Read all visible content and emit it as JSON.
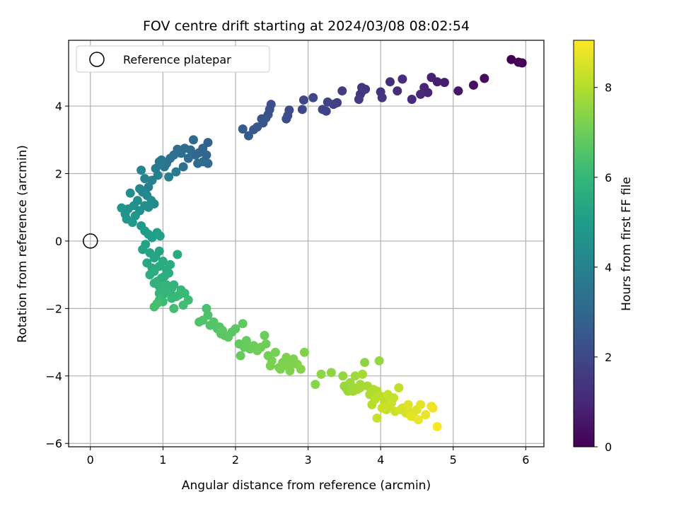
{
  "chart_data": {
    "type": "scatter",
    "title": "FOV centre drift starting at 2024/03/08 08:02:54",
    "xlabel": "Angular distance from reference (arcmin)",
    "ylabel": "Rotation from reference (arcmin)",
    "xlim": [
      -0.3,
      6.25
    ],
    "ylim": [
      -6.1,
      5.95
    ],
    "xticks": [
      0,
      1,
      2,
      3,
      4,
      5,
      6
    ],
    "yticks": [
      -6,
      -4,
      -2,
      0,
      2,
      4
    ],
    "grid": true,
    "legend": {
      "placement": "top-left",
      "label": "Reference platepar"
    },
    "reference_point": {
      "x": 0,
      "y": 0
    },
    "colorbar": {
      "label": "Hours from first FF file",
      "range": [
        0,
        9.05
      ],
      "ticks": [
        0,
        2,
        4,
        6,
        8
      ],
      "colormap": "viridis",
      "colors": [
        "#440154",
        "#482878",
        "#3e4989",
        "#31688e",
        "#26828e",
        "#1f9e89",
        "#35b779",
        "#6ece58",
        "#b5de2b",
        "#fde725"
      ]
    },
    "series": [
      {
        "x": [
          5.8,
          5.9,
          5.95,
          5.43,
          5.28,
          5.07,
          4.88,
          4.78,
          4.7,
          4.65,
          4.6,
          4.55,
          4.43,
          4.3,
          4.23,
          4.13,
          4.0,
          4.02,
          3.79,
          3.75,
          3.72,
          3.7,
          3.74,
          3.47,
          3.4,
          3.35,
          3.27,
          3.25,
          3.2,
          3.07,
          2.94,
          2.92,
          2.74,
          2.7,
          2.72,
          2.49,
          2.47,
          2.45,
          2.42,
          2.38,
          2.36,
          2.3,
          2.25,
          2.18,
          2.1
        ],
        "y": [
          5.38,
          5.3,
          5.28,
          4.82,
          4.62,
          4.45,
          4.7,
          4.72,
          4.85,
          4.4,
          4.55,
          4.35,
          4.2,
          4.8,
          4.45,
          4.72,
          4.42,
          4.25,
          4.5,
          4.45,
          4.35,
          4.2,
          4.55,
          4.45,
          4.1,
          4.05,
          4.12,
          3.85,
          3.9,
          4.25,
          4.18,
          3.9,
          3.88,
          3.62,
          3.72,
          4.05,
          3.9,
          3.75,
          3.65,
          3.5,
          3.62,
          3.38,
          3.3,
          3.12,
          3.32
        ],
        "t": [
          0.0,
          0.05,
          0.1,
          0.3,
          0.4,
          0.55,
          0.7,
          0.75,
          0.8,
          0.9,
          0.95,
          1.0,
          1.1,
          1.15,
          1.2,
          1.25,
          1.3,
          1.35,
          1.4,
          1.45,
          1.5,
          1.55,
          1.45,
          1.6,
          1.7,
          1.75,
          1.8,
          1.85,
          1.9,
          1.95,
          2.0,
          2.05,
          2.1,
          2.15,
          2.15,
          2.2,
          2.25,
          2.3,
          2.35,
          2.4,
          2.42,
          2.45,
          2.5,
          2.55,
          2.6
        ]
      },
      {
        "x": [
          1.62,
          1.55,
          1.5,
          1.45,
          1.42,
          1.38,
          1.3,
          1.25,
          1.2,
          1.15,
          1.1,
          1.05,
          1.02,
          0.98,
          0.95,
          0.9,
          1.35,
          1.28,
          1.55,
          1.48,
          1.6,
          1.62,
          1.18,
          1.08,
          0.93,
          0.85,
          0.8,
          0.75,
          0.7,
          0.68,
          0.72,
          0.78,
          0.84,
          0.88,
          0.8,
          0.75,
          0.68,
          0.65,
          0.6,
          0.55,
          0.52,
          0.48,
          0.43,
          0.5,
          0.58,
          0.62
        ],
        "y": [
          2.92,
          2.75,
          2.62,
          2.55,
          3.0,
          2.7,
          2.75,
          2.6,
          2.72,
          2.55,
          2.45,
          2.3,
          2.2,
          2.4,
          2.35,
          2.15,
          2.45,
          2.2,
          2.35,
          2.3,
          2.55,
          2.3,
          2.05,
          1.9,
          1.95,
          1.8,
          1.6,
          1.85,
          2.1,
          1.55,
          1.45,
          1.35,
          1.2,
          1.1,
          1.0,
          1.05,
          0.9,
          1.2,
          1.05,
          1.42,
          0.95,
          0.8,
          0.98,
          0.65,
          0.55,
          0.75
        ],
        "t": [
          2.8,
          2.9,
          3.0,
          3.05,
          3.1,
          3.15,
          3.2,
          3.25,
          3.3,
          3.35,
          3.4,
          3.5,
          3.55,
          3.6,
          3.65,
          3.7,
          3.2,
          3.3,
          3.1,
          3.2,
          3.0,
          3.1,
          3.75,
          3.85,
          3.9,
          3.95,
          4.0,
          4.05,
          4.1,
          4.15,
          4.2,
          4.25,
          4.3,
          4.35,
          4.4,
          4.45,
          4.5,
          4.45,
          4.55,
          4.5,
          4.6,
          4.65,
          4.7,
          4.75,
          4.8,
          4.85
        ]
      },
      {
        "x": [
          0.7,
          0.75,
          0.8,
          0.85,
          0.92,
          0.96,
          0.76,
          0.72,
          0.82,
          0.88,
          0.78,
          0.85,
          0.9,
          0.95,
          1.0,
          0.95,
          0.88,
          0.82,
          1.05,
          1.1,
          0.98,
          0.92,
          0.88,
          0.95,
          1.02,
          1.08,
          1.12,
          1.05,
          1.0,
          0.95,
          1.15,
          1.2,
          1.25,
          1.18,
          1.12,
          1.0,
          0.95,
          1.3,
          1.35,
          1.28,
          1.22,
          1.15,
          1.1,
          1.05,
          0.92,
          0.88
        ],
        "y": [
          0.45,
          0.3,
          0.2,
          0.1,
          0.25,
          0.15,
          -0.1,
          -0.25,
          -0.35,
          -0.5,
          -0.65,
          -0.8,
          -0.45,
          -0.3,
          -0.6,
          -0.75,
          -0.9,
          -1.0,
          -0.85,
          -0.7,
          -1.1,
          -1.2,
          -1.25,
          -1.35,
          -1.05,
          -0.95,
          -1.4,
          -1.5,
          -1.6,
          -1.55,
          -1.3,
          -0.4,
          -1.45,
          -1.65,
          -1.7,
          -1.8,
          -1.75,
          -1.55,
          -1.75,
          -1.9,
          -1.6,
          -2.0,
          -1.5,
          -1.3,
          -1.85,
          -1.95
        ],
        "t": [
          4.9,
          4.95,
          5.0,
          5.05,
          5.1,
          5.15,
          5.2,
          5.25,
          5.3,
          5.35,
          5.4,
          5.45,
          5.3,
          5.25,
          5.5,
          5.55,
          5.6,
          5.65,
          5.6,
          5.55,
          5.7,
          5.75,
          5.8,
          5.85,
          5.7,
          5.65,
          5.9,
          5.95,
          6.0,
          6.0,
          5.9,
          5.5,
          6.05,
          6.1,
          6.1,
          6.15,
          6.15,
          6.1,
          6.2,
          6.25,
          6.1,
          6.3,
          6.0,
          5.9,
          6.3,
          6.35
        ]
      },
      {
        "x": [
          1.6,
          1.62,
          1.55,
          1.5,
          1.65,
          1.75,
          1.8,
          1.85,
          1.78,
          1.9,
          1.95,
          2.0,
          2.05,
          2.1,
          2.15,
          2.2,
          2.25,
          2.3,
          2.35,
          2.4,
          2.45,
          2.5,
          2.55,
          2.6,
          2.65,
          2.7,
          2.72,
          2.75,
          2.8,
          2.85,
          2.9,
          2.95,
          2.07,
          2.12,
          1.82,
          1.7,
          2.42,
          2.48,
          2.62,
          2.78
        ],
        "y": [
          -2.0,
          -2.2,
          -2.35,
          -2.4,
          -2.5,
          -2.6,
          -2.75,
          -2.8,
          -2.55,
          -2.85,
          -2.7,
          -2.6,
          -3.05,
          -2.45,
          -2.95,
          -3.2,
          -3.1,
          -3.25,
          -3.15,
          -2.8,
          -3.4,
          -3.55,
          -3.3,
          -3.75,
          -3.6,
          -3.45,
          -3.7,
          -3.85,
          -3.5,
          -3.65,
          -3.8,
          -3.3,
          -3.4,
          -3.15,
          -2.65,
          -2.4,
          -3.05,
          -3.7,
          -3.8,
          -3.65
        ],
        "t": [
          6.4,
          6.45,
          6.5,
          6.5,
          6.55,
          6.6,
          6.65,
          6.7,
          6.6,
          6.75,
          6.7,
          6.7,
          6.85,
          6.8,
          6.9,
          6.95,
          7.0,
          7.05,
          7.05,
          6.95,
          7.1,
          7.15,
          7.15,
          7.2,
          7.25,
          7.25,
          7.3,
          7.3,
          7.25,
          7.35,
          7.35,
          7.3,
          6.9,
          6.9,
          6.7,
          6.6,
          7.05,
          7.2,
          7.25,
          7.3
        ]
      },
      {
        "x": [
          3.1,
          3.18,
          3.32,
          3.48,
          3.52,
          3.55,
          3.6,
          3.65,
          3.68,
          3.72,
          3.75,
          3.78,
          3.82,
          3.85,
          3.9,
          3.95,
          3.98,
          3.72,
          3.62,
          3.58,
          3.5,
          3.88,
          3.92,
          4.0,
          4.05,
          4.08,
          4.12,
          4.15,
          4.2,
          4.25,
          4.3,
          4.35,
          4.4,
          4.45,
          4.5,
          4.55,
          4.62,
          4.7,
          4.72,
          4.78,
          3.95,
          4.02,
          4.18,
          4.28,
          4.38,
          4.42,
          4.52,
          4.1
        ],
        "y": [
          -4.25,
          -3.95,
          -3.9,
          -4.0,
          -4.35,
          -4.45,
          -4.3,
          -4.0,
          -4.4,
          -4.25,
          -3.95,
          -3.6,
          -4.3,
          -4.55,
          -4.4,
          -4.45,
          -3.55,
          -4.35,
          -4.45,
          -4.2,
          -4.3,
          -4.85,
          -4.7,
          -4.6,
          -4.75,
          -5.0,
          -4.9,
          -4.8,
          -5.05,
          -4.35,
          -4.95,
          -5.1,
          -5.05,
          -5.2,
          -5.0,
          -4.85,
          -5.15,
          -4.9,
          -4.95,
          -5.5,
          -5.25,
          -4.95,
          -4.65,
          -5.0,
          -4.85,
          -5.2,
          -5.3,
          -4.55
        ],
        "t": [
          7.4,
          7.45,
          7.5,
          7.55,
          7.6,
          7.65,
          7.7,
          7.75,
          7.75,
          7.8,
          7.8,
          7.5,
          7.85,
          7.9,
          7.95,
          8.0,
          7.6,
          7.85,
          7.75,
          7.7,
          7.65,
          8.05,
          8.1,
          8.15,
          8.2,
          8.25,
          8.3,
          8.35,
          8.4,
          8.2,
          8.45,
          8.5,
          8.55,
          8.6,
          8.65,
          8.7,
          8.75,
          8.8,
          8.85,
          9.0,
          8.3,
          8.35,
          8.3,
          8.5,
          8.6,
          8.7,
          8.8,
          8.25
        ]
      }
    ]
  }
}
